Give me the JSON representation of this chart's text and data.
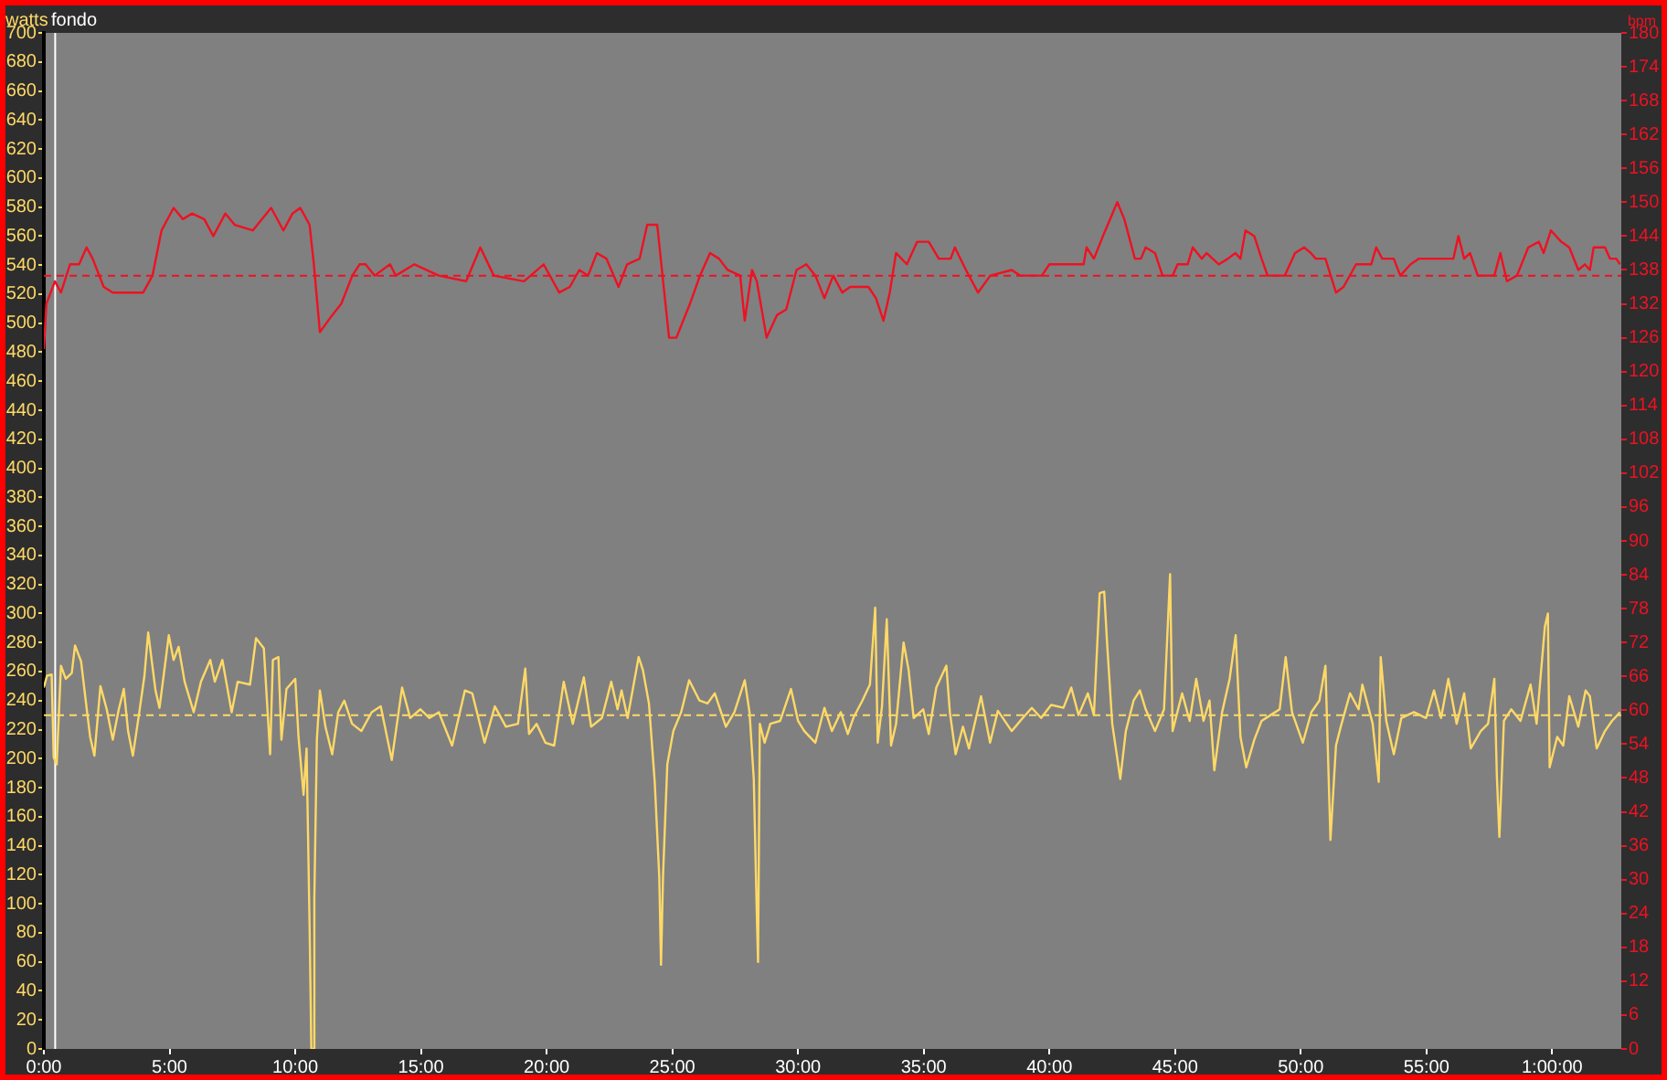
{
  "chart_data": {
    "type": "line",
    "title": "fondo",
    "ylabel": "watts",
    "y2label": "bpm",
    "xlim": [
      0,
      62.75
    ],
    "xticks": [
      {
        "value": 0,
        "label": "0:00"
      },
      {
        "value": 5,
        "label": "5:00"
      },
      {
        "value": 10,
        "label": "10:00"
      },
      {
        "value": 15,
        "label": "15:00"
      },
      {
        "value": 20,
        "label": "20:00"
      },
      {
        "value": 25,
        "label": "25:00"
      },
      {
        "value": 30,
        "label": "30:00"
      },
      {
        "value": 35,
        "label": "35:00"
      },
      {
        "value": 40,
        "label": "40:00"
      },
      {
        "value": 45,
        "label": "45:00"
      },
      {
        "value": 50,
        "label": "50:00"
      },
      {
        "value": 55,
        "label": "55:00"
      },
      {
        "value": 60,
        "label": "1:00:00"
      }
    ],
    "ylim": [
      0,
      700
    ],
    "yticks": [
      0,
      20,
      40,
      60,
      80,
      100,
      120,
      140,
      160,
      180,
      200,
      220,
      240,
      260,
      280,
      300,
      320,
      340,
      360,
      380,
      400,
      420,
      440,
      460,
      480,
      500,
      520,
      540,
      560,
      580,
      600,
      620,
      640,
      660,
      680,
      700
    ],
    "y2lim": [
      0,
      180
    ],
    "y2ticks": [
      0,
      6,
      12,
      18,
      24,
      30,
      36,
      42,
      48,
      54,
      60,
      66,
      72,
      78,
      84,
      90,
      96,
      102,
      108,
      114,
      120,
      126,
      132,
      138,
      144,
      150,
      156,
      162,
      168,
      174,
      180
    ],
    "series": [
      {
        "color": "#ffd966",
        "axis": "y",
        "x": [
          0,
          0.12,
          0.31,
          0.39,
          0.51,
          0.68,
          0.87,
          1.11,
          1.24,
          1.48,
          1.72,
          1.84,
          2.01,
          2.25,
          2.5,
          2.74,
          2.98,
          3.18,
          3.35,
          3.54,
          3.78,
          4.0,
          4.15,
          4.44,
          4.6,
          4.97,
          5.16,
          5.36,
          5.6,
          5.96,
          6.25,
          6.62,
          6.8,
          7.1,
          7.47,
          7.71,
          8.2,
          8.44,
          8.75,
          9.0,
          9.11,
          9.33,
          9.45,
          9.65,
          10.0,
          10.13,
          10.33,
          10.45,
          10.57,
          10.64,
          10.72,
          10.76,
          10.86,
          10.98,
          11.2,
          11.47,
          11.71,
          11.95,
          12.26,
          12.63,
          13.04,
          13.4,
          13.84,
          14.25,
          14.57,
          14.98,
          15.34,
          15.71,
          16.24,
          16.75,
          17.04,
          17.53,
          17.94,
          18.38,
          18.86,
          19.15,
          19.3,
          19.6,
          19.95,
          20.3,
          20.68,
          21.04,
          21.48,
          21.77,
          22.2,
          22.57,
          22.82,
          22.98,
          23.22,
          23.66,
          23.83,
          24.07,
          24.3,
          24.48,
          24.55,
          24.63,
          24.8,
          25.04,
          25.35,
          25.67,
          26.08,
          26.4,
          26.69,
          27.13,
          27.47,
          27.88,
          28.07,
          28.24,
          28.36,
          28.41,
          28.48,
          28.67,
          28.9,
          29.29,
          29.72,
          30.0,
          30.25,
          30.69,
          31.05,
          31.35,
          31.7,
          31.98,
          32.2,
          32.56,
          32.86,
          33.07,
          33.17,
          33.34,
          33.53,
          33.7,
          33.9,
          34.2,
          34.4,
          34.6,
          34.98,
          35.2,
          35.5,
          35.9,
          36.04,
          36.27,
          36.56,
          36.8,
          37.28,
          37.64,
          37.95,
          38.5,
          38.94,
          39.3,
          39.67,
          40.07,
          40.56,
          40.87,
          41.16,
          41.53,
          41.77,
          42.0,
          42.18,
          42.3,
          42.5,
          42.82,
          43.04,
          43.35,
          43.6,
          43.83,
          44.2,
          44.56,
          44.8,
          44.9,
          45.28,
          45.58,
          45.84,
          46.13,
          46.37,
          46.56,
          46.87,
          47.17,
          47.41,
          47.6,
          47.83,
          48.15,
          48.44,
          48.8,
          49.16,
          49.4,
          49.65,
          50.08,
          50.42,
          50.74,
          50.98,
          51.18,
          51.4,
          51.59,
          51.96,
          52.3,
          52.45,
          52.86,
          53.1,
          53.18,
          53.4,
          53.7,
          54.0,
          54.5,
          54.98,
          55.3,
          55.58,
          55.87,
          56.2,
          56.5,
          56.76,
          57.16,
          57.45,
          57.7,
          57.8,
          57.9,
          58.08,
          58.37,
          58.74,
          59.14,
          59.38,
          59.71,
          59.83,
          59.9,
          60.2,
          60.44,
          60.68,
          61.04,
          61.33,
          61.5,
          61.77,
          62.1,
          62.38,
          62.7
        ],
        "values": [
          249,
          257,
          258,
          201,
          196,
          264,
          255,
          259,
          278,
          267,
          232,
          215,
          202,
          250,
          234,
          213,
          234,
          248,
          219,
          202,
          230,
          257,
          287,
          247,
          235,
          285,
          268,
          277,
          253,
          232,
          253,
          268,
          253,
          268,
          232,
          253,
          251,
          283,
          276,
          203,
          268,
          270,
          213,
          248,
          255,
          215,
          175,
          207,
          85,
          0,
          0,
          104,
          213,
          247,
          222,
          203,
          232,
          240,
          224,
          219,
          232,
          236,
          199,
          249,
          228,
          234,
          228,
          232,
          209,
          247,
          245,
          211,
          236,
          222,
          224,
          262,
          217,
          224,
          211,
          209,
          253,
          224,
          256,
          222,
          228,
          253,
          234,
          247,
          228,
          270,
          261,
          238,
          184,
          119,
          58,
          119,
          196,
          219,
          232,
          254,
          240,
          238,
          245,
          222,
          232,
          254,
          232,
          186,
          93,
          60,
          224,
          211,
          224,
          226,
          248,
          226,
          219,
          211,
          235,
          219,
          232,
          217,
          228,
          240,
          251,
          304,
          211,
          236,
          296,
          209,
          224,
          280,
          261,
          228,
          234,
          217,
          249,
          264,
          232,
          203,
          222,
          207,
          243,
          211,
          233,
          219,
          228,
          235,
          228,
          237,
          235,
          249,
          230,
          245,
          230,
          314,
          315,
          278,
          224,
          186,
          219,
          240,
          247,
          234,
          219,
          234,
          327,
          219,
          245,
          226,
          255,
          226,
          240,
          192,
          232,
          255,
          285,
          215,
          194,
          213,
          226,
          230,
          234,
          270,
          232,
          211,
          232,
          240,
          264,
          144,
          209,
          222,
          245,
          234,
          251,
          224,
          184,
          270,
          226,
          203,
          228,
          232,
          228,
          247,
          228,
          255,
          224,
          245,
          207,
          219,
          224,
          255,
          188,
          146,
          226,
          234,
          226,
          251,
          224,
          291,
          300,
          194,
          215,
          209,
          243,
          222,
          247,
          243,
          207,
          219,
          226,
          232
        ]
      },
      {
        "color": "#ee1122",
        "axis": "y2",
        "x": [
          0,
          0.1,
          0.44,
          0.68,
          1.04,
          1.4,
          1.7,
          1.94,
          2.38,
          2.74,
          3.35,
          3.95,
          4.32,
          4.68,
          5.16,
          5.53,
          5.89,
          6.38,
          6.74,
          7.22,
          7.59,
          8.31,
          9.04,
          9.53,
          9.89,
          10.2,
          10.57,
          10.74,
          10.98,
          11.47,
          11.83,
          12.27,
          12.56,
          12.8,
          13.16,
          13.77,
          14.0,
          14.74,
          15.71,
          16.8,
          17.36,
          17.9,
          19.1,
          19.88,
          20.5,
          20.92,
          21.3,
          21.65,
          22.0,
          22.38,
          22.86,
          23.2,
          23.7,
          24.0,
          24.4,
          24.68,
          24.87,
          25.16,
          25.7,
          26.1,
          26.5,
          26.86,
          27.2,
          27.7,
          27.88,
          28.17,
          28.36,
          28.75,
          29.16,
          29.53,
          29.94,
          30.33,
          30.69,
          31.05,
          31.4,
          31.76,
          32.07,
          32.8,
          33.1,
          33.4,
          33.65,
          33.9,
          34.33,
          34.74,
          35.2,
          35.6,
          36.07,
          36.24,
          36.68,
          37.16,
          37.65,
          38.5,
          38.85,
          39.7,
          40.0,
          41.36,
          41.48,
          41.77,
          42.13,
          42.7,
          42.98,
          43.4,
          43.64,
          43.83,
          44.2,
          44.5,
          44.9,
          45.1,
          45.5,
          45.7,
          46.06,
          46.25,
          46.74,
          47.1,
          47.4,
          47.6,
          47.8,
          48.15,
          48.44,
          48.68,
          49.36,
          49.77,
          50.13,
          50.4,
          50.6,
          50.98,
          51.4,
          51.7,
          52.2,
          52.8,
          53.0,
          53.24,
          53.7,
          53.96,
          54.37,
          54.7,
          56.07,
          56.27,
          56.5,
          56.73,
          57.04,
          57.7,
          57.94,
          58.2,
          58.6,
          59.05,
          59.47,
          59.66,
          59.95,
          60.36,
          60.68,
          61.04,
          61.3,
          61.5,
          61.65,
          62.1,
          62.3,
          62.55,
          62.7
        ],
        "values": [
          124,
          132,
          136,
          134,
          139,
          139,
          142,
          140,
          135,
          134,
          134,
          134,
          137,
          145,
          149,
          147,
          148,
          147,
          144,
          148,
          146,
          145,
          149,
          145,
          148,
          149,
          146,
          139,
          127,
          130,
          132,
          137,
          139,
          139,
          137,
          139,
          137,
          139,
          137,
          136,
          142,
          137,
          136,
          139,
          134,
          135,
          138,
          137,
          141,
          140,
          135,
          139,
          140,
          146,
          146,
          134,
          126,
          126,
          132,
          137,
          141,
          140,
          138,
          137,
          129,
          138,
          136,
          126,
          130,
          131,
          138,
          139,
          137,
          133,
          137,
          134,
          135,
          135,
          133,
          129,
          134,
          141,
          139,
          143,
          143,
          140,
          140,
          142,
          138,
          134,
          137,
          138,
          137,
          137,
          139,
          139,
          142,
          140,
          144,
          150,
          147,
          140,
          140,
          142,
          141,
          137,
          137,
          139,
          139,
          142,
          140,
          141,
          139,
          140,
          141,
          140,
          145,
          144,
          140,
          137,
          137,
          141,
          142,
          141,
          140,
          140,
          134,
          135,
          139,
          139,
          142,
          140,
          140,
          137,
          139,
          140,
          140,
          144,
          140,
          141,
          137,
          137,
          141,
          136,
          137,
          142,
          143,
          141,
          145,
          143,
          142,
          138,
          139,
          138,
          142,
          142,
          140,
          140,
          139
        ]
      }
    ],
    "ref_lines": [
      {
        "axis": "y",
        "value": 230,
        "color": "#ffd966",
        "line_style": "dashed"
      },
      {
        "axis": "y2",
        "value": 137,
        "color": "#ee1122",
        "line_style": "dashed"
      },
      {
        "axis": "x",
        "value": 0.45,
        "color": "#ffffff",
        "line_style": "solid"
      }
    ],
    "grid": false,
    "legend": false,
    "marker": "none",
    "line_style": "solid"
  }
}
